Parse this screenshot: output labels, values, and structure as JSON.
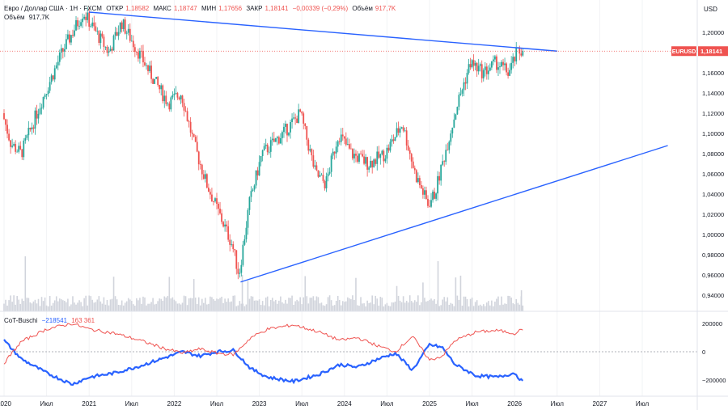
{
  "header": {
    "symbol_title": "Евро / Доллар США · 1Н · FXCM",
    "open_label": "ОТКР",
    "open_value": "1,18582",
    "high_label": "МАКС",
    "high_value": "1,18747",
    "low_label": "МИН",
    "low_value": "1,17656",
    "close_label": "ЗАКР",
    "close_value": "1,18141",
    "change_value": "−0,00339 (−0,29%)",
    "volume_label": "Объём",
    "volume_value": "917,7K"
  },
  "volume_legend": {
    "label": "Объём",
    "value": "917,7K"
  },
  "currency_label": "USD",
  "price_tag": {
    "symbol": "EURUSD",
    "value": "1,18141"
  },
  "cot_legend": {
    "name": "CoT-Buschi",
    "value_blue": "−218541",
    "value_red": "163 361"
  },
  "colors": {
    "up": "#26a69a",
    "down": "#ef5350",
    "trendline": "#2962ff",
    "cot_blue": "#2962ff",
    "cot_red": "#ef5350",
    "volume": "#d1d4dc",
    "axis_text": "#131722"
  },
  "chart_data": [
    {
      "type": "candlestick",
      "title": "Евро / Доллар США · 1Н · FXCM",
      "ylabel": "USD",
      "ylim": [
        0.93,
        1.22
      ],
      "y_ticks": [
        "1,20000",
        "1,18000",
        "1,16000",
        "1,14000",
        "1,12000",
        "1,10000",
        "1,08000",
        "1,06000",
        "1,04000",
        "1,02000",
        "1,00000",
        "0,98000",
        "0,96000",
        "0,94000"
      ],
      "x_ticks": [
        "2020",
        "Июл",
        "2021",
        "Июл",
        "2022",
        "Июл",
        "2023",
        "Июл",
        "2024",
        "Июл",
        "2025",
        "Июл",
        "2026",
        "Июл",
        "2027",
        "Июл"
      ],
      "price_path": [
        {
          "t": 2020.0,
          "p": 1.12
        },
        {
          "t": 2020.1,
          "p": 1.09
        },
        {
          "t": 2020.22,
          "p": 1.08
        },
        {
          "t": 2020.45,
          "p": 1.13
        },
        {
          "t": 2020.7,
          "p": 1.18
        },
        {
          "t": 2020.95,
          "p": 1.22
        },
        {
          "t": 2021.1,
          "p": 1.2
        },
        {
          "t": 2021.25,
          "p": 1.18
        },
        {
          "t": 2021.4,
          "p": 1.21
        },
        {
          "t": 2021.6,
          "p": 1.18
        },
        {
          "t": 2021.8,
          "p": 1.15
        },
        {
          "t": 2021.95,
          "p": 1.13
        },
        {
          "t": 2022.1,
          "p": 1.14
        },
        {
          "t": 2022.25,
          "p": 1.09
        },
        {
          "t": 2022.4,
          "p": 1.05
        },
        {
          "t": 2022.55,
          "p": 1.02
        },
        {
          "t": 2022.7,
          "p": 0.99
        },
        {
          "t": 2022.78,
          "p": 0.96
        },
        {
          "t": 2022.9,
          "p": 1.03
        },
        {
          "t": 2023.05,
          "p": 1.08
        },
        {
          "t": 2023.3,
          "p": 1.1
        },
        {
          "t": 2023.5,
          "p": 1.12
        },
        {
          "t": 2023.68,
          "p": 1.06
        },
        {
          "t": 2023.8,
          "p": 1.05
        },
        {
          "t": 2023.95,
          "p": 1.1
        },
        {
          "t": 2024.1,
          "p": 1.08
        },
        {
          "t": 2024.3,
          "p": 1.07
        },
        {
          "t": 2024.5,
          "p": 1.08
        },
        {
          "t": 2024.7,
          "p": 1.11
        },
        {
          "t": 2024.85,
          "p": 1.06
        },
        {
          "t": 2025.0,
          "p": 1.03
        },
        {
          "t": 2025.08,
          "p": 1.04
        },
        {
          "t": 2025.2,
          "p": 1.08
        },
        {
          "t": 2025.35,
          "p": 1.13
        },
        {
          "t": 2025.5,
          "p": 1.17
        },
        {
          "t": 2025.65,
          "p": 1.16
        },
        {
          "t": 2025.8,
          "p": 1.17
        },
        {
          "t": 2025.95,
          "p": 1.16
        },
        {
          "t": 2026.05,
          "p": 1.18
        },
        {
          "t": 2026.1,
          "p": 1.18141
        }
      ],
      "trendlines": [
        {
          "name": "resistance",
          "t1": 2021.0,
          "p1": 1.22,
          "t2": 2026.5,
          "p2": 1.1814
        },
        {
          "name": "support",
          "t1": 2022.78,
          "p1": 0.953,
          "t2": 2027.8,
          "p2": 1.088
        }
      ],
      "last_close": 1.18141
    },
    {
      "type": "line",
      "title": "CoT-Buschi",
      "ylim": [
        -300000,
        300000
      ],
      "y_ticks": [
        "200000",
        "0",
        "−200000"
      ],
      "series": [
        {
          "name": "blue",
          "points": [
            {
              "t": 2020.0,
              "v": 80000
            },
            {
              "t": 2020.2,
              "v": -50000
            },
            {
              "t": 2020.5,
              "v": -150000
            },
            {
              "t": 2020.8,
              "v": -230000
            },
            {
              "t": 2021.0,
              "v": -180000
            },
            {
              "t": 2021.3,
              "v": -150000
            },
            {
              "t": 2021.6,
              "v": -100000
            },
            {
              "t": 2021.9,
              "v": -40000
            },
            {
              "t": 2022.1,
              "v": 0
            },
            {
              "t": 2022.3,
              "v": -30000
            },
            {
              "t": 2022.5,
              "v": 0
            },
            {
              "t": 2022.7,
              "v": 10000
            },
            {
              "t": 2022.9,
              "v": -120000
            },
            {
              "t": 2023.1,
              "v": -180000
            },
            {
              "t": 2023.4,
              "v": -210000
            },
            {
              "t": 2023.7,
              "v": -160000
            },
            {
              "t": 2023.95,
              "v": -90000
            },
            {
              "t": 2024.15,
              "v": -110000
            },
            {
              "t": 2024.4,
              "v": -50000
            },
            {
              "t": 2024.6,
              "v": -10000
            },
            {
              "t": 2024.8,
              "v": -130000
            },
            {
              "t": 2025.0,
              "v": 50000
            },
            {
              "t": 2025.15,
              "v": 30000
            },
            {
              "t": 2025.3,
              "v": -90000
            },
            {
              "t": 2025.55,
              "v": -170000
            },
            {
              "t": 2025.8,
              "v": -180000
            },
            {
              "t": 2026.0,
              "v": -150000
            },
            {
              "t": 2026.1,
              "v": -218541
            }
          ]
        },
        {
          "name": "red",
          "points": [
            {
              "t": 2020.0,
              "v": -80000
            },
            {
              "t": 2020.2,
              "v": 70000
            },
            {
              "t": 2020.5,
              "v": 160000
            },
            {
              "t": 2020.8,
              "v": 200000
            },
            {
              "t": 2021.0,
              "v": 160000
            },
            {
              "t": 2021.3,
              "v": 130000
            },
            {
              "t": 2021.6,
              "v": 80000
            },
            {
              "t": 2021.9,
              "v": 20000
            },
            {
              "t": 2022.1,
              "v": -10000
            },
            {
              "t": 2022.3,
              "v": 20000
            },
            {
              "t": 2022.5,
              "v": -10000
            },
            {
              "t": 2022.7,
              "v": -20000
            },
            {
              "t": 2022.9,
              "v": 100000
            },
            {
              "t": 2023.1,
              "v": 160000
            },
            {
              "t": 2023.4,
              "v": 190000
            },
            {
              "t": 2023.7,
              "v": 140000
            },
            {
              "t": 2023.95,
              "v": 80000
            },
            {
              "t": 2024.15,
              "v": 100000
            },
            {
              "t": 2024.4,
              "v": 40000
            },
            {
              "t": 2024.6,
              "v": 0
            },
            {
              "t": 2024.8,
              "v": 110000
            },
            {
              "t": 2025.0,
              "v": -60000
            },
            {
              "t": 2025.15,
              "v": -30000
            },
            {
              "t": 2025.3,
              "v": 80000
            },
            {
              "t": 2025.55,
              "v": 140000
            },
            {
              "t": 2025.8,
              "v": 150000
            },
            {
              "t": 2026.0,
              "v": 130000
            },
            {
              "t": 2026.1,
              "v": 163361
            }
          ]
        }
      ]
    }
  ]
}
